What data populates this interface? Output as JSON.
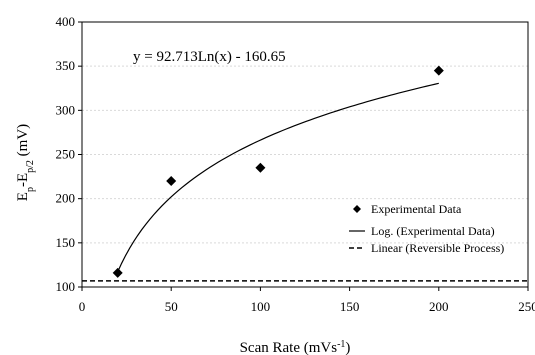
{
  "chart_data": {
    "type": "scatter",
    "xlabel": "Scan Rate (mVs",
    "xlabel_sup": "-1",
    "xlabel_close": ")",
    "ylabel_main": "E",
    "ylabel_sub1": "p",
    "ylabel_mid": "-E",
    "ylabel_sub2": "p/2",
    "ylabel_tail": " (mV)",
    "xlim": [
      0,
      250
    ],
    "ylim": [
      100,
      400
    ],
    "xticks": [
      "0",
      "50",
      "100",
      "150",
      "200",
      "250"
    ],
    "yticks": [
      "100",
      "150",
      "200",
      "250",
      "300",
      "350",
      "400"
    ],
    "grid": "horizontal dashed",
    "legend_position": "bottom-right",
    "annotation": "y = 92.713Ln(x) - 160.65",
    "series": [
      {
        "name": "Experimental Data",
        "kind": "points",
        "points": [
          [
            20,
            116
          ],
          [
            50,
            220
          ],
          [
            100,
            235
          ],
          [
            200,
            345
          ]
        ]
      },
      {
        "name": "Log. (Experimental Data)",
        "kind": "curve",
        "a": 92.713,
        "b": -160.65,
        "x_range": [
          20,
          200
        ]
      },
      {
        "name": "Linear (Reversible Process)",
        "kind": "hline",
        "y": 107,
        "x_range": [
          0,
          250
        ]
      }
    ]
  }
}
